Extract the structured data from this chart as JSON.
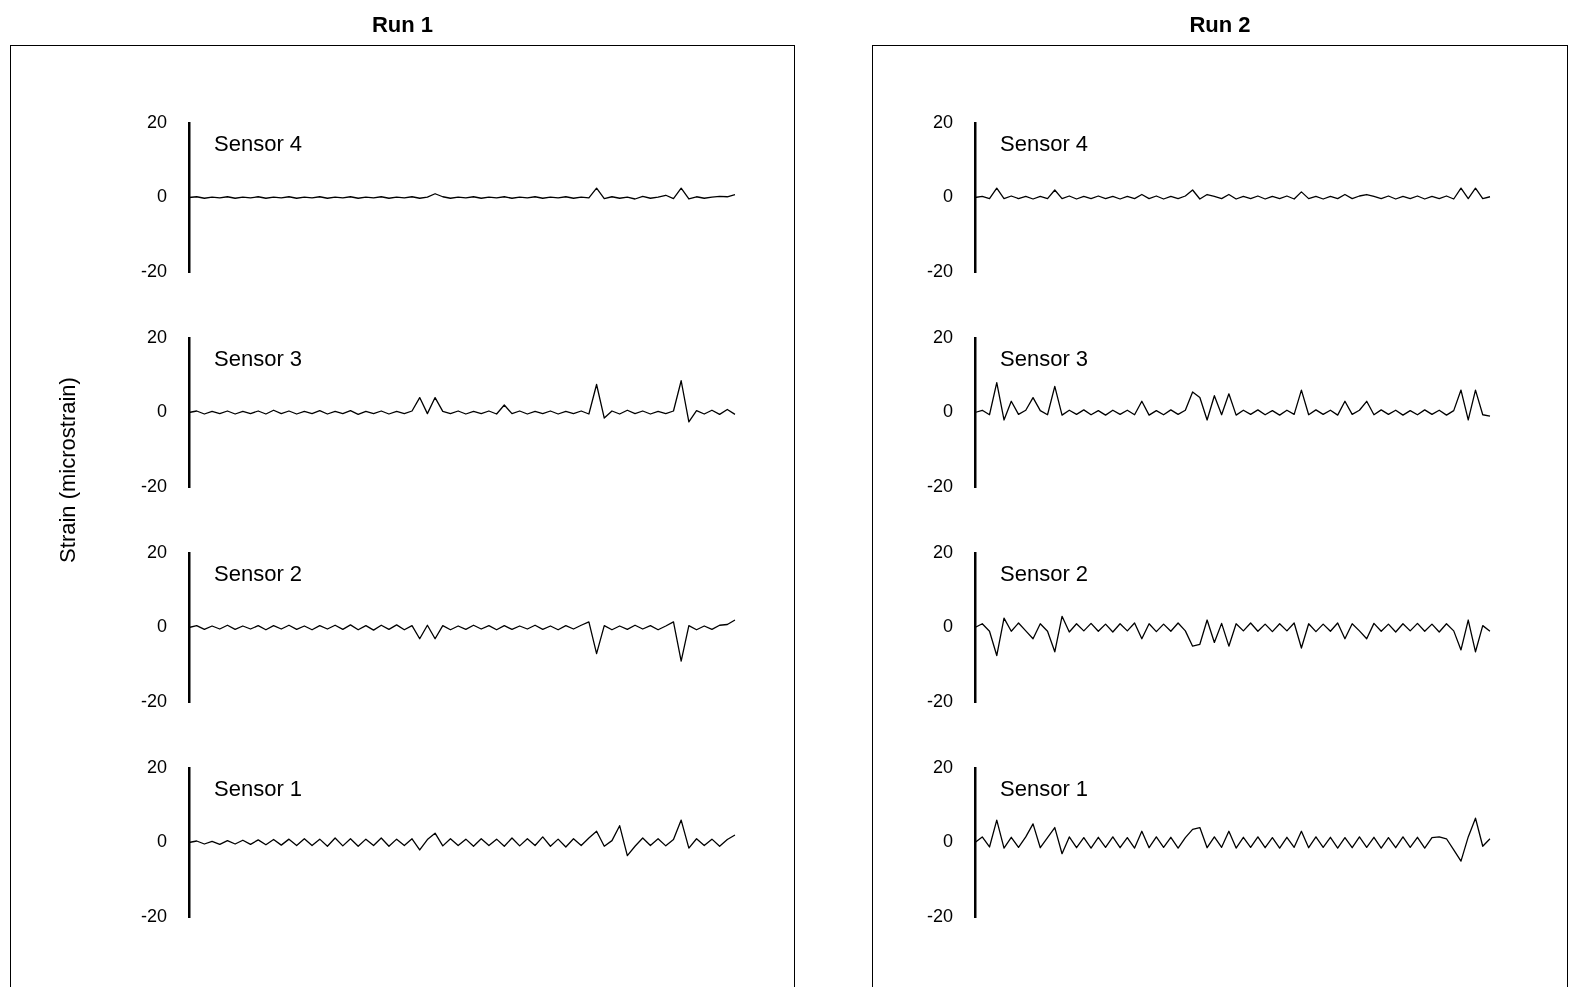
{
  "chart_data": [
    {
      "type": "line",
      "title": "Run 1",
      "ylabel": "Strain (microstrain)",
      "annotations": [
        "Sensor 4"
      ],
      "ylim": [
        -20,
        20
      ],
      "yticks": [
        -20,
        0,
        20
      ],
      "grid": false,
      "tick_labels": "y",
      "color": "#000000",
      "categories": [
        null,
        null,
        null,
        null,
        null,
        null,
        null,
        null,
        null,
        null,
        null,
        null,
        null,
        null,
        null,
        null,
        null,
        null,
        null,
        null,
        null,
        null,
        null,
        null,
        null,
        null,
        null,
        null,
        null,
        null,
        null,
        null,
        null,
        null,
        null,
        null,
        null,
        null,
        null,
        null,
        null,
        null,
        null,
        null,
        null,
        null,
        null,
        null,
        null,
        null,
        null,
        null,
        null,
        null,
        null,
        null,
        null,
        null,
        null,
        null,
        null,
        null,
        null,
        null,
        null,
        null,
        null,
        null,
        null,
        null,
        null,
        null
      ],
      "values": [
        0,
        0.2,
        -0.2,
        0.1,
        -0.1,
        0.2,
        -0.2,
        0.1,
        -0.1,
        0.2,
        -0.2,
        0.1,
        -0.1,
        0.2,
        -0.2,
        0.1,
        -0.1,
        0.2,
        -0.2,
        0.1,
        -0.1,
        0.2,
        -0.2,
        0.1,
        -0.1,
        0.2,
        -0.2,
        0.1,
        -0.1,
        0.2,
        -0.2,
        0.1,
        1,
        0.2,
        -0.2,
        0.1,
        -0.1,
        0.2,
        -0.2,
        0.1,
        -0.1,
        0.2,
        -0.2,
        0.1,
        -0.1,
        0.2,
        -0.2,
        0.1,
        -0.1,
        0.2,
        -0.2,
        0.1,
        -0.1,
        2.5,
        -0.3,
        0.2,
        -0.2,
        0.1,
        -0.4,
        0.3,
        -0.2,
        0.1,
        0.6,
        -0.3,
        2.5,
        -0.4,
        0.2,
        -0.2,
        0.1,
        0.3,
        0.2,
        0.8
      ]
    },
    {
      "type": "line",
      "annotations": [
        "Sensor 3"
      ],
      "ylim": [
        -20,
        20
      ],
      "yticks": [
        -20,
        0,
        20
      ],
      "grid": false,
      "tick_labels": "y",
      "color": "#000000",
      "categories": [
        null,
        null,
        null,
        null,
        null,
        null,
        null,
        null,
        null,
        null,
        null,
        null,
        null,
        null,
        null,
        null,
        null,
        null,
        null,
        null,
        null,
        null,
        null,
        null,
        null,
        null,
        null,
        null,
        null,
        null,
        null,
        null,
        null,
        null,
        null,
        null,
        null,
        null,
        null,
        null,
        null,
        null,
        null,
        null,
        null,
        null,
        null,
        null,
        null,
        null,
        null,
        null,
        null,
        null,
        null,
        null,
        null,
        null,
        null,
        null,
        null,
        null,
        null,
        null,
        null,
        null,
        null,
        null,
        null,
        null,
        null,
        null
      ],
      "values": [
        0,
        0.4,
        -0.4,
        0.3,
        -0.3,
        0.4,
        -0.4,
        0.3,
        -0.3,
        0.4,
        -0.4,
        0.6,
        -0.3,
        0.4,
        -0.4,
        0.3,
        -0.3,
        0.5,
        -0.4,
        0.3,
        -0.3,
        0.5,
        -0.5,
        0.3,
        -0.3,
        0.4,
        -0.4,
        0.3,
        -0.3,
        0.4,
        4,
        -0.3,
        4,
        0.3,
        -0.3,
        0.4,
        -0.4,
        0.3,
        -0.3,
        0.4,
        -0.4,
        2,
        -0.3,
        0.4,
        -0.4,
        0.3,
        -0.3,
        0.4,
        -0.4,
        0.3,
        -0.3,
        0.4,
        -0.4,
        7.5,
        -1.5,
        0.4,
        -0.4,
        0.6,
        -0.3,
        0.4,
        -0.4,
        0.3,
        -0.3,
        0.4,
        8.5,
        -2.5,
        0.5,
        -0.4,
        0.6,
        -0.5,
        0.8,
        -0.5
      ]
    },
    {
      "type": "line",
      "annotations": [
        "Sensor 2"
      ],
      "ylim": [
        -20,
        20
      ],
      "yticks": [
        -20,
        0,
        20
      ],
      "grid": false,
      "tick_labels": "y",
      "color": "#000000",
      "categories": [
        null,
        null,
        null,
        null,
        null,
        null,
        null,
        null,
        null,
        null,
        null,
        null,
        null,
        null,
        null,
        null,
        null,
        null,
        null,
        null,
        null,
        null,
        null,
        null,
        null,
        null,
        null,
        null,
        null,
        null,
        null,
        null,
        null,
        null,
        null,
        null,
        null,
        null,
        null,
        null,
        null,
        null,
        null,
        null,
        null,
        null,
        null,
        null,
        null,
        null,
        null,
        null,
        null,
        null,
        null,
        null,
        null,
        null,
        null,
        null,
        null,
        null,
        null,
        null,
        null,
        null,
        null,
        null,
        null,
        null,
        null,
        null
      ],
      "values": [
        0,
        0.5,
        -0.5,
        0.4,
        -0.4,
        0.6,
        -0.5,
        0.4,
        -0.4,
        0.5,
        -0.6,
        0.5,
        -0.4,
        0.6,
        -0.5,
        0.4,
        -0.6,
        0.5,
        -0.4,
        0.6,
        -0.5,
        0.7,
        -0.6,
        0.5,
        -0.7,
        0.6,
        -0.5,
        0.7,
        -0.6,
        0.5,
        -3,
        0.6,
        -3,
        0.5,
        -0.6,
        0.4,
        -0.5,
        0.6,
        -0.4,
        0.5,
        -0.6,
        0.5,
        -0.5,
        0.4,
        -0.4,
        0.6,
        -0.5,
        0.4,
        -0.6,
        0.5,
        -0.4,
        0.6,
        1.5,
        -7,
        0.5,
        -0.6,
        0.4,
        -0.5,
        0.6,
        -0.4,
        0.5,
        -0.6,
        0.4,
        1.5,
        -9,
        0.5,
        -0.6,
        0.4,
        -0.5,
        0.6,
        0.8,
        2
      ]
    },
    {
      "type": "line",
      "annotations": [
        "Sensor 1"
      ],
      "ylim": [
        -20,
        20
      ],
      "yticks": [
        -20,
        0,
        20
      ],
      "grid": false,
      "tick_labels": "y",
      "color": "#000000",
      "categories": [
        null,
        null,
        null,
        null,
        null,
        null,
        null,
        null,
        null,
        null,
        null,
        null,
        null,
        null,
        null,
        null,
        null,
        null,
        null,
        null,
        null,
        null,
        null,
        null,
        null,
        null,
        null,
        null,
        null,
        null,
        null,
        null,
        null,
        null,
        null,
        null,
        null,
        null,
        null,
        null,
        null,
        null,
        null,
        null,
        null,
        null,
        null,
        null,
        null,
        null,
        null,
        null,
        null,
        null,
        null,
        null,
        null,
        null,
        null,
        null,
        null,
        null,
        null,
        null,
        null,
        null,
        null,
        null,
        null,
        null,
        null,
        null
      ],
      "values": [
        0,
        0.4,
        -0.4,
        0.3,
        -0.5,
        0.5,
        -0.4,
        0.6,
        -0.5,
        0.7,
        -0.6,
        0.8,
        -0.7,
        0.9,
        -0.8,
        1,
        -0.8,
        0.9,
        -1,
        1.2,
        -0.9,
        1,
        -1,
        0.9,
        -0.8,
        1.2,
        -1,
        0.9,
        -0.8,
        1,
        -2,
        0.8,
        2.5,
        -0.9,
        1,
        -0.8,
        0.9,
        -1,
        1,
        -0.8,
        0.9,
        -1,
        1.2,
        -0.9,
        1,
        -0.8,
        1.5,
        -1,
        0.9,
        -1.2,
        1,
        -0.8,
        1.2,
        3,
        -1,
        0.5,
        4.5,
        -3.5,
        -1,
        1.2,
        -0.8,
        1,
        -0.9,
        0.8,
        6,
        -1.5,
        1,
        -0.8,
        0.9,
        -1,
        0.8,
        2
      ]
    },
    {
      "type": "line",
      "title": "Run 2",
      "annotations": [
        "Sensor 4"
      ],
      "ylim": [
        -20,
        20
      ],
      "yticks": [
        -20,
        0,
        20
      ],
      "grid": false,
      "tick_labels": "y",
      "color": "#000000",
      "categories": [
        null,
        null,
        null,
        null,
        null,
        null,
        null,
        null,
        null,
        null,
        null,
        null,
        null,
        null,
        null,
        null,
        null,
        null,
        null,
        null,
        null,
        null,
        null,
        null,
        null,
        null,
        null,
        null,
        null,
        null,
        null,
        null,
        null,
        null,
        null,
        null,
        null,
        null,
        null,
        null,
        null,
        null,
        null,
        null,
        null,
        null,
        null,
        null,
        null,
        null,
        null,
        null,
        null,
        null,
        null,
        null,
        null,
        null,
        null,
        null,
        null,
        null,
        null,
        null,
        null,
        null,
        null,
        null,
        null,
        null,
        null,
        null
      ],
      "values": [
        0,
        0.3,
        -0.3,
        2.5,
        -0.3,
        0.4,
        -0.3,
        0.3,
        -0.4,
        0.3,
        -0.3,
        2,
        -0.3,
        0.4,
        -0.4,
        0.3,
        -0.3,
        0.4,
        -0.3,
        0.3,
        -0.4,
        0.3,
        -0.3,
        0.8,
        -0.3,
        0.4,
        -0.4,
        0.3,
        -0.3,
        0.4,
        2,
        -0.4,
        0.8,
        0.3,
        -0.3,
        0.8,
        -0.4,
        0.3,
        -0.3,
        0.4,
        -0.4,
        0.3,
        -0.3,
        0.4,
        -0.4,
        1.5,
        -0.3,
        0.3,
        -0.4,
        0.3,
        -0.3,
        0.8,
        -0.3,
        0.4,
        0.8,
        0.3,
        -0.3,
        0.4,
        -0.4,
        0.3,
        -0.3,
        0.4,
        -0.4,
        0.3,
        -0.3,
        0.4,
        -0.4,
        2.5,
        -0.3,
        2.5,
        -0.3,
        0.2
      ]
    },
    {
      "type": "line",
      "annotations": [
        "Sensor 3"
      ],
      "ylim": [
        -20,
        20
      ],
      "yticks": [
        -20,
        0,
        20
      ],
      "grid": false,
      "tick_labels": "y",
      "color": "#000000",
      "categories": [
        null,
        null,
        null,
        null,
        null,
        null,
        null,
        null,
        null,
        null,
        null,
        null,
        null,
        null,
        null,
        null,
        null,
        null,
        null,
        null,
        null,
        null,
        null,
        null,
        null,
        null,
        null,
        null,
        null,
        null,
        null,
        null,
        null,
        null,
        null,
        null,
        null,
        null,
        null,
        null,
        null,
        null,
        null,
        null,
        null,
        null,
        null,
        null,
        null,
        null,
        null,
        null,
        null,
        null,
        null,
        null,
        null,
        null,
        null,
        null,
        null,
        null,
        null,
        null,
        null,
        null,
        null,
        null,
        null,
        null,
        null,
        null
      ],
      "values": [
        0,
        0.6,
        -0.6,
        8,
        -2,
        3,
        -0.5,
        0.6,
        4,
        0.5,
        -0.6,
        7,
        -0.7,
        0.6,
        -0.5,
        0.7,
        -0.6,
        0.5,
        -0.7,
        0.6,
        -0.5,
        0.6,
        -0.6,
        3,
        -0.7,
        0.5,
        -0.6,
        0.7,
        -0.5,
        0.6,
        5.5,
        4,
        -2,
        4.5,
        -0.6,
        5,
        -0.7,
        0.6,
        -0.5,
        0.7,
        -0.6,
        0.5,
        -0.7,
        0.6,
        -0.5,
        6,
        -0.6,
        0.7,
        -0.5,
        0.6,
        -0.7,
        3,
        -0.5,
        0.6,
        3,
        -0.6,
        0.7,
        -0.5,
        0.6,
        -0.7,
        0.5,
        -0.6,
        0.7,
        -0.5,
        0.6,
        -0.7,
        0.5,
        6,
        -2,
        6,
        -0.6,
        -1
      ]
    },
    {
      "type": "line",
      "annotations": [
        "Sensor 2"
      ],
      "ylim": [
        -20,
        20
      ],
      "yticks": [
        -20,
        0,
        20
      ],
      "grid": false,
      "tick_labels": "y",
      "color": "#000000",
      "categories": [
        null,
        null,
        null,
        null,
        null,
        null,
        null,
        null,
        null,
        null,
        null,
        null,
        null,
        null,
        null,
        null,
        null,
        null,
        null,
        null,
        null,
        null,
        null,
        null,
        null,
        null,
        null,
        null,
        null,
        null,
        null,
        null,
        null,
        null,
        null,
        null,
        null,
        null,
        null,
        null,
        null,
        null,
        null,
        null,
        null,
        null,
        null,
        null,
        null,
        null,
        null,
        null,
        null,
        null,
        null,
        null,
        null,
        null,
        null,
        null,
        null,
        null,
        null,
        null,
        null,
        null,
        null,
        null,
        null,
        null,
        null,
        null
      ],
      "values": [
        0,
        1,
        -1,
        -7.5,
        2.5,
        -1,
        1.2,
        -0.9,
        -3,
        1,
        -1,
        -6.5,
        3,
        -1.2,
        1,
        -0.9,
        1.1,
        -1,
        0.9,
        -1.2,
        1,
        -0.9,
        1.2,
        -3,
        1,
        -1.1,
        0.9,
        -1,
        1.2,
        -0.9,
        -5,
        -4.5,
        2,
        -4,
        1.1,
        -5,
        1,
        -0.9,
        1.2,
        -1,
        0.9,
        -1.1,
        1,
        -0.9,
        1.2,
        -5.5,
        1,
        -1.1,
        0.9,
        -1,
        1.2,
        -3,
        1,
        -0.9,
        -3,
        1.1,
        -1,
        0.9,
        -1.2,
        1,
        -0.9,
        1.1,
        -1,
        0.9,
        -1.2,
        1,
        -0.9,
        -6,
        2,
        -6.5,
        0.5,
        -1
      ]
    },
    {
      "type": "line",
      "annotations": [
        "Sensor 1"
      ],
      "ylim": [
        -20,
        20
      ],
      "yticks": [
        -20,
        0,
        20
      ],
      "grid": false,
      "tick_labels": "y",
      "color": "#000000",
      "categories": [
        null,
        null,
        null,
        null,
        null,
        null,
        null,
        null,
        null,
        null,
        null,
        null,
        null,
        null,
        null,
        null,
        null,
        null,
        null,
        null,
        null,
        null,
        null,
        null,
        null,
        null,
        null,
        null,
        null,
        null,
        null,
        null,
        null,
        null,
        null,
        null,
        null,
        null,
        null,
        null,
        null,
        null,
        null,
        null,
        null,
        null,
        null,
        null,
        null,
        null,
        null,
        null,
        null,
        null,
        null,
        null,
        null,
        null,
        null,
        null,
        null,
        null,
        null,
        null,
        null,
        null,
        null,
        null,
        null,
        null,
        null,
        null
      ],
      "values": [
        0,
        1.5,
        -1.2,
        6,
        -1.5,
        1.4,
        -1.3,
        1.5,
        5,
        -1.4,
        1.3,
        4,
        -3,
        1.5,
        -1.4,
        1.3,
        -1.5,
        1.4,
        -1.3,
        1.5,
        -1.4,
        1.3,
        -1.5,
        3,
        -1.4,
        1.5,
        -1.3,
        1.4,
        -1.5,
        1.3,
        3.5,
        4,
        -1.4,
        1.5,
        -1.3,
        3,
        -1.5,
        1.4,
        -1.3,
        1.5,
        -1.4,
        1.3,
        -1.5,
        1.4,
        -1.3,
        3,
        -1.4,
        1.5,
        -1.3,
        1.4,
        -1.5,
        1.3,
        -1.4,
        1.5,
        -1.3,
        1.4,
        -1.5,
        1.3,
        -1.4,
        1.5,
        -1.3,
        1.4,
        -1.5,
        1.3,
        1.5,
        1,
        -2,
        -5,
        1.5,
        6.5,
        -1,
        1
      ]
    }
  ]
}
